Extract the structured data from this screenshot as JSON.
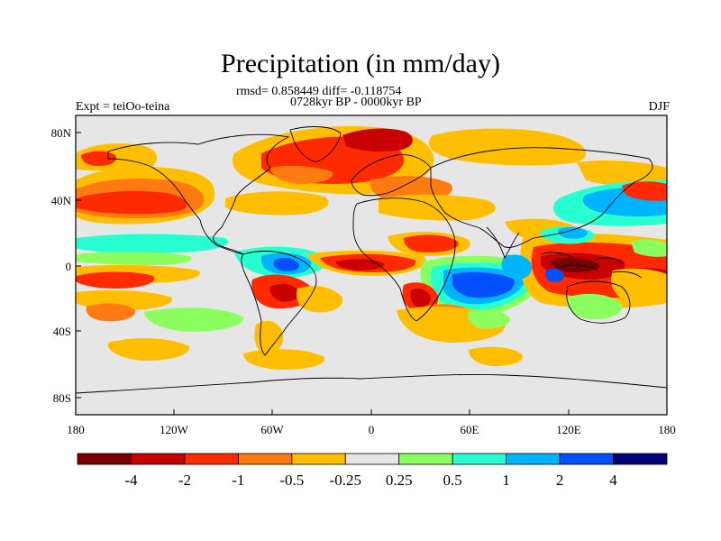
{
  "title": "Precipitation (in mm/day)",
  "stats_line": "rmsd= 0.858449 diff= -0.118754",
  "period_line": "0728kyr BP - 0000kyr BP",
  "experiment_label": "Expt = teiOo-teina",
  "season_label": "DJF",
  "lat_ticks": [
    "80N",
    "40N",
    "0",
    "40S",
    "80S"
  ],
  "lon_ticks": [
    "180",
    "120W",
    "60W",
    "0",
    "60E",
    "120E",
    "180"
  ],
  "colorbar": {
    "colors": [
      "#7a0000",
      "#c80000",
      "#ff2a00",
      "#ff7a10",
      "#ffbf00",
      "#e6e6e6",
      "#8cff60",
      "#28ffd0",
      "#00b4ff",
      "#0050ff",
      "#00007a"
    ],
    "labels": [
      "-4",
      "-2",
      "-1",
      "-0.5",
      "-0.25",
      "0.25",
      "0.5",
      "1",
      "2",
      "4"
    ]
  },
  "palette": {
    "ocean_land_bg": "#e6e6e6",
    "coast": "#000000"
  }
}
